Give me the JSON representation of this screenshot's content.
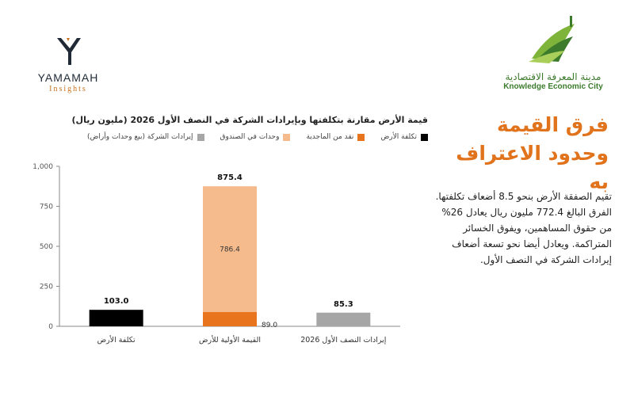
{
  "brand_left": {
    "name": "YAMAMAH",
    "sub": "Insights"
  },
  "brand_right": {
    "arabic": "مدينة المعرفة الاقتصادية",
    "english": "Knowledge Economic City"
  },
  "headline": "فرق القيمة وحدود الاعتراف به",
  "body": "تقيم الصفقة الأرض بنحو 8.5 أضعاف تكلفتها. الفرق البالغ 772.4 مليون ريال يعادل 26% من حقوق المساهمين، ويفوق الخسائر المتراكمة. ويعادل أيضا نحو تسعة أضعاف إيرادات الشركة في النصف الأول.",
  "colors": {
    "land_cost": "#000000",
    "cash": "#e8741e",
    "units": "#f6bb8d",
    "revenue": "#a6a6a6",
    "accent": "#e0731c"
  },
  "chart_data": {
    "type": "bar",
    "title": "قيمة الأرض مقارنة بتكلفتها وبإيرادات الشركة في النصف الأول 2026 (مليون ريال)",
    "legend": [
      {
        "label": "تكلفة الأرض",
        "color": "#000000"
      },
      {
        "label": "نقد من الماجدية",
        "color": "#e8741e"
      },
      {
        "label": "وحدات في الصندوق",
        "color": "#f6bb8d"
      },
      {
        "label": "إيرادات الشركة (بيع وحدات وأراض)",
        "color": "#a6a6a6"
      }
    ],
    "categories": [
      "تكلفة الأرض",
      "القيمة الأولية للأرض",
      "إيرادات النصف الأول 2026"
    ],
    "stacked": true,
    "series": [
      {
        "name": "تكلفة الأرض",
        "color": "#000000",
        "values": [
          103.0,
          0,
          0
        ]
      },
      {
        "name": "نقد من الماجدية",
        "color": "#e8741e",
        "values": [
          0,
          89.0,
          0
        ]
      },
      {
        "name": "وحدات في الصندوق",
        "color": "#f6bb8d",
        "values": [
          0,
          786.4,
          0
        ]
      },
      {
        "name": "إيرادات الشركة (بيع وحدات وأراض)",
        "color": "#a6a6a6",
        "values": [
          0,
          0,
          85.3
        ]
      }
    ],
    "totals": [
      "103.0",
      "875.4",
      "85.3"
    ],
    "segment_labels": {
      "cash": "89.0",
      "units": "786.4"
    },
    "yticks": [
      "0",
      "250",
      "500",
      "750",
      "1,000"
    ],
    "ytick_values": [
      0,
      250,
      500,
      750,
      1000
    ],
    "ylim": [
      0,
      1000
    ],
    "grid": false
  }
}
